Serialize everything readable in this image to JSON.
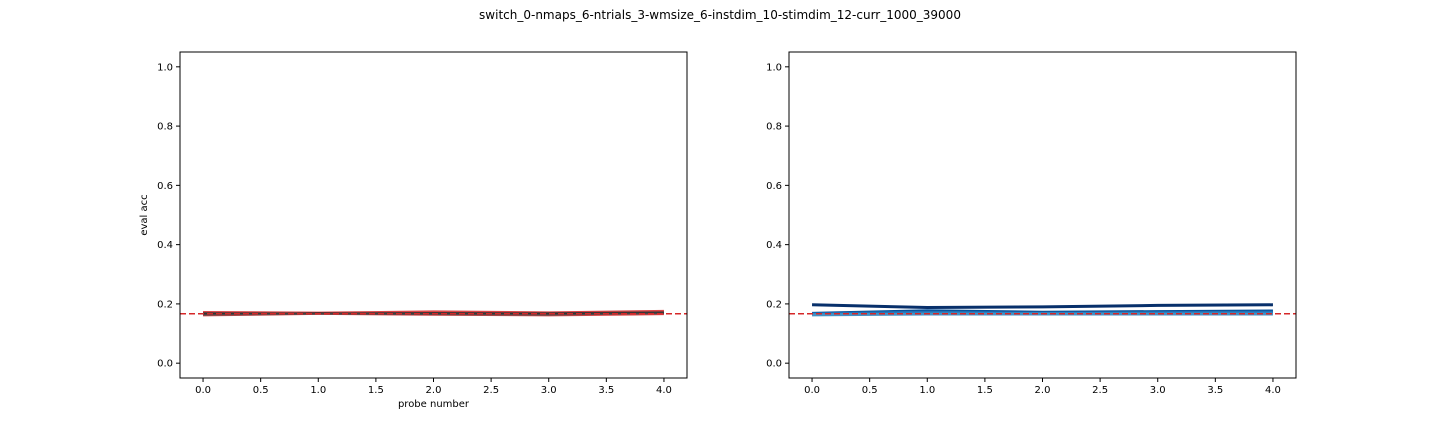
{
  "figure": {
    "suptitle": "switch_0-nmaps_6-ntrials_3-wmsize_6-instdim_10-stimdim_12-curr_1000_39000"
  },
  "chart_data": [
    {
      "type": "line",
      "title": "",
      "xlabel": "probe number",
      "ylabel": "eval acc",
      "xlim": [
        -0.2,
        4.2
      ],
      "ylim": [
        -0.05,
        1.05
      ],
      "xticks": [
        "0.0",
        "0.5",
        "1.0",
        "1.5",
        "2.0",
        "2.5",
        "3.0",
        "3.5",
        "4.0"
      ],
      "yticks": [
        "0.0",
        "0.2",
        "0.4",
        "0.6",
        "0.8",
        "1.0"
      ],
      "grid": false,
      "chance_line": {
        "y": 0.1667,
        "style": "dashed",
        "color": "#d62728"
      },
      "band": {
        "color": "#d62728",
        "x": [
          0,
          1,
          2,
          3,
          4
        ],
        "lower": [
          0.158,
          0.163,
          0.16,
          0.158,
          0.162
        ],
        "upper": [
          0.176,
          0.174,
          0.178,
          0.175,
          0.18
        ]
      },
      "series": [
        {
          "color": "#1a1a1a",
          "x": [
            0,
            1,
            2,
            3,
            4
          ],
          "values": [
            0.165,
            0.169,
            0.166,
            0.165,
            0.17
          ]
        },
        {
          "color": "#333333",
          "x": [
            0,
            1,
            2,
            3,
            4
          ],
          "values": [
            0.169,
            0.168,
            0.17,
            0.169,
            0.172
          ]
        },
        {
          "color": "#4d4d4d",
          "x": [
            0,
            1,
            2,
            3,
            4
          ],
          "values": [
            0.163,
            0.166,
            0.165,
            0.163,
            0.168
          ]
        }
      ]
    },
    {
      "type": "line",
      "title": "",
      "xlabel": "",
      "ylabel": "",
      "xlim": [
        -0.2,
        4.2
      ],
      "ylim": [
        -0.05,
        1.05
      ],
      "xticks": [
        "0.0",
        "0.5",
        "1.0",
        "1.5",
        "2.0",
        "2.5",
        "3.0",
        "3.5",
        "4.0"
      ],
      "yticks": [
        "0.0",
        "0.2",
        "0.4",
        "0.6",
        "0.8",
        "1.0"
      ],
      "grid": false,
      "chance_line": {
        "y": 0.1667,
        "style": "dashed",
        "color": "#d62728"
      },
      "series": [
        {
          "color": "#08306b",
          "x": [
            0,
            1,
            2,
            3,
            4
          ],
          "values": [
            0.197,
            0.188,
            0.19,
            0.195,
            0.197
          ]
        },
        {
          "color": "#08519c",
          "x": [
            0,
            1,
            2,
            3,
            4
          ],
          "values": [
            0.168,
            0.177,
            0.172,
            0.174,
            0.176
          ]
        },
        {
          "color": "#2171b5",
          "x": [
            0,
            1,
            2,
            3,
            4
          ],
          "values": [
            0.166,
            0.172,
            0.168,
            0.17,
            0.172
          ]
        },
        {
          "color": "#4292c6",
          "x": [
            0,
            1,
            2,
            3,
            4
          ],
          "values": [
            0.163,
            0.166,
            0.166,
            0.166,
            0.166
          ]
        }
      ]
    }
  ]
}
